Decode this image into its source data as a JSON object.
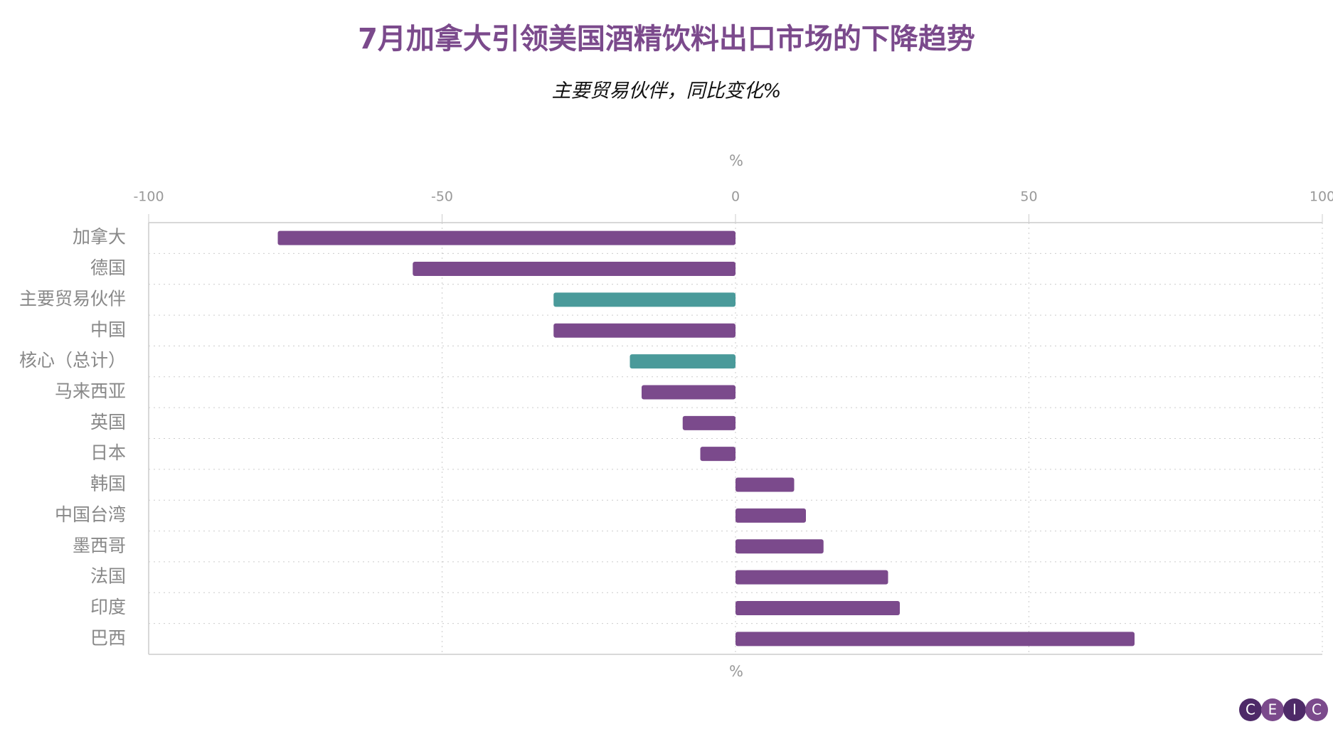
{
  "chart_data": {
    "type": "bar",
    "orientation": "horizontal",
    "title": "7月加拿大引领美国酒精饮料出口市场的下降趋势",
    "subtitle": "主要贸易伙伴，同比变化%",
    "xlabel": "%",
    "categories": [
      "加拿大",
      "德国",
      "主要贸易伙伴",
      "中国",
      "核心（总计）",
      "马来西亚",
      "英国",
      "日本",
      "韩国",
      "中国台湾",
      "墨西哥",
      "法国",
      "印度",
      "巴西"
    ],
    "values": [
      -78,
      -55,
      -31,
      -31,
      -18,
      -16,
      -9,
      -6,
      10,
      12,
      15,
      26,
      28,
      68
    ],
    "colors": [
      "#7b4a8c",
      "#7b4a8c",
      "#4a9a9a",
      "#7b4a8c",
      "#4a9a9a",
      "#7b4a8c",
      "#7b4a8c",
      "#7b4a8c",
      "#7b4a8c",
      "#7b4a8c",
      "#7b4a8c",
      "#7b4a8c",
      "#7b4a8c",
      "#7b4a8c"
    ],
    "xlim": [
      -100,
      100
    ],
    "xticks": [
      -100,
      -50,
      0,
      50,
      100
    ],
    "grid": true,
    "logo": [
      "C",
      "E",
      "I",
      "C"
    ]
  }
}
